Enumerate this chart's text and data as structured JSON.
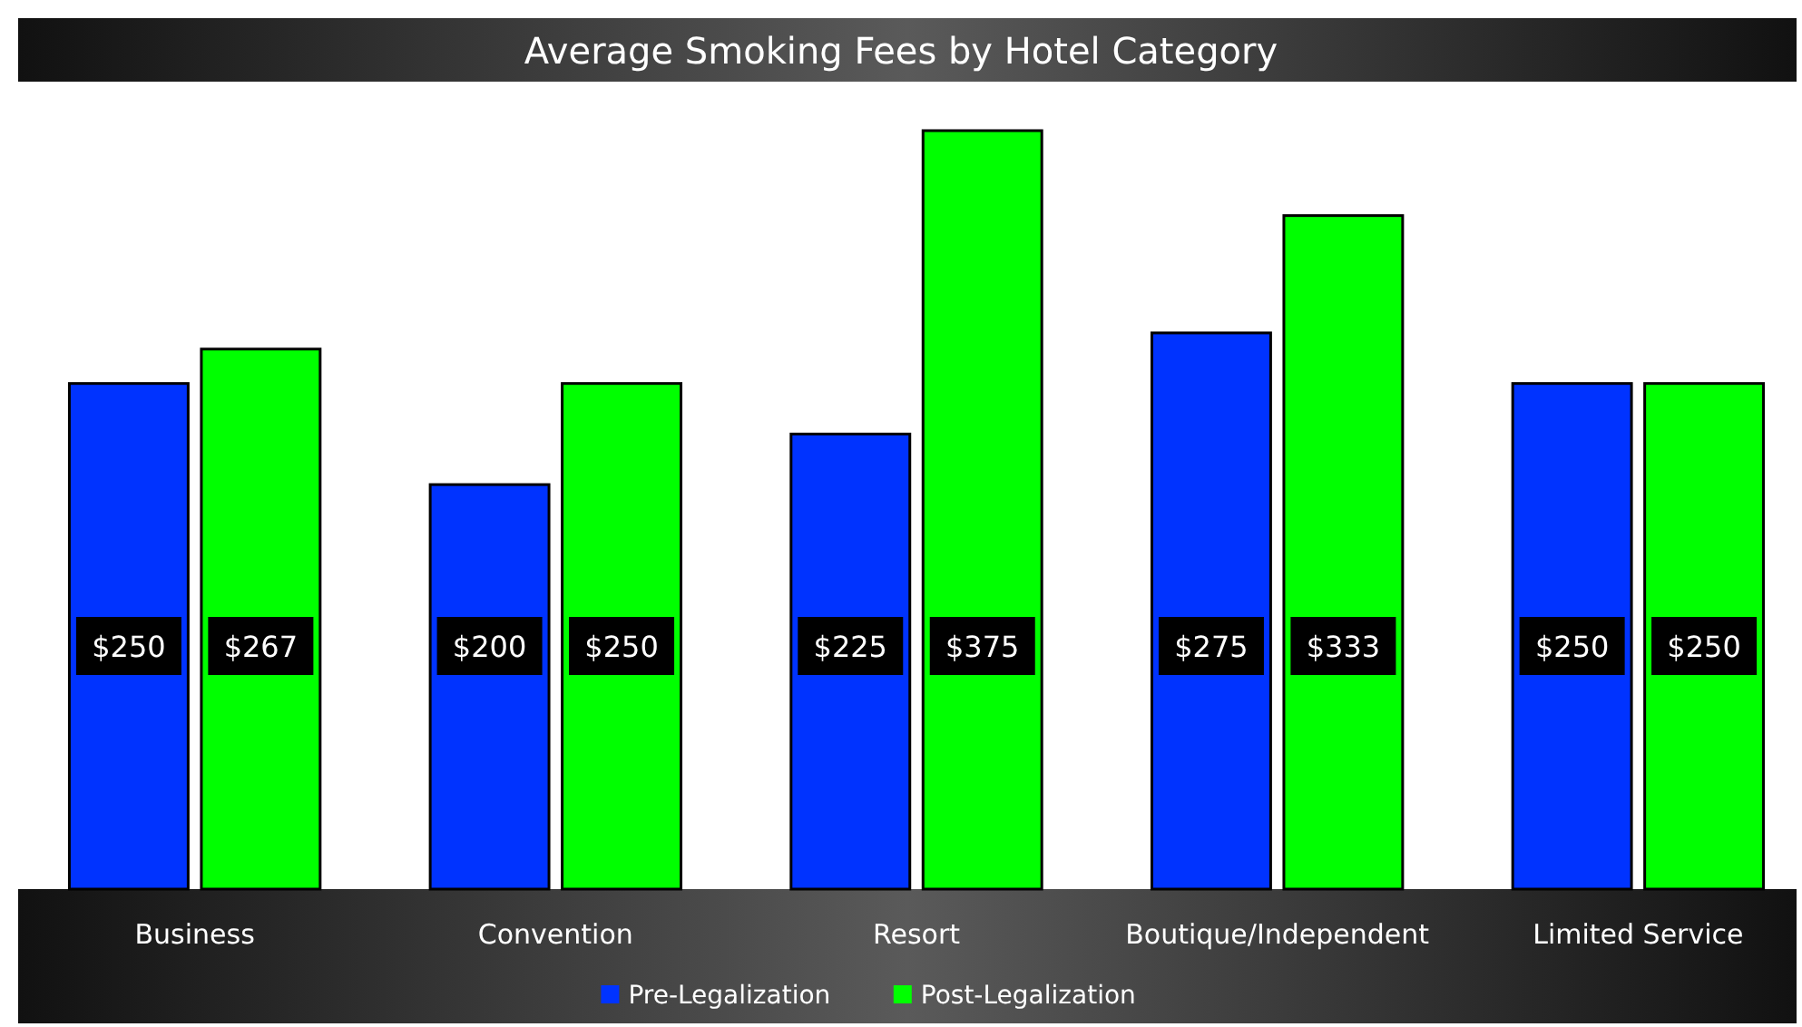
{
  "chart_data": {
    "type": "bar",
    "title": "Average Smoking Fees by Hotel Category",
    "categories": [
      "Business",
      "Convention",
      "Resort",
      "Boutique/Independent",
      "Limited Service"
    ],
    "series": [
      {
        "name": "Pre-Legalization",
        "color": "#0033ff",
        "values": [
          250,
          200,
          225,
          275,
          250
        ],
        "value_labels": [
          "$250",
          "$200",
          "$225",
          "$275",
          "$250"
        ]
      },
      {
        "name": "Post-Legalization",
        "color": "#00ff00",
        "values": [
          267,
          250,
          375,
          333,
          250
        ],
        "value_labels": [
          "$267",
          "$250",
          "$375",
          "$333",
          "$250"
        ]
      }
    ],
    "legend": "bottom",
    "grid": false
  }
}
